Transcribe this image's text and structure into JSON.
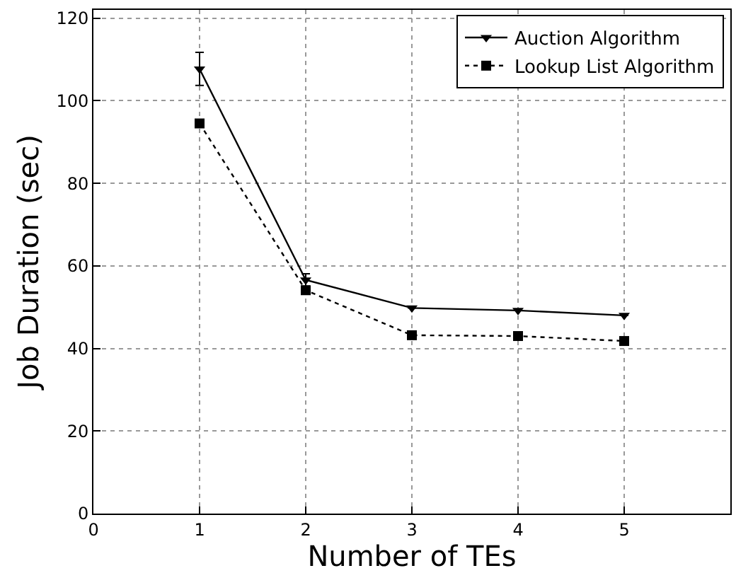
{
  "chart_data": {
    "type": "line",
    "xlabel": "Number of TEs",
    "ylabel": "Job Duration (sec)",
    "x": [
      1,
      2,
      3,
      4,
      5
    ],
    "series": [
      {
        "name": "Auction Algorithm",
        "color": "#000000",
        "values": [
          107.7,
          56.6,
          49.8,
          49.2,
          48.0
        ],
        "errors": [
          4,
          1.5,
          null,
          null,
          null
        ],
        "marker": "triangle",
        "line_style": "solid"
      },
      {
        "name": "Lookup List Algorithm",
        "color": "#000000",
        "values": [
          94.5,
          54.1,
          43.2,
          43.0,
          41.8
        ],
        "marker": "square",
        "line_style": "dotted"
      }
    ],
    "xlim": [
      0,
      6
    ],
    "xticks": [
      0,
      1,
      2,
      3,
      4,
      5
    ],
    "ylim": [
      0,
      122
    ],
    "yticks": [
      0,
      20,
      40,
      60,
      80,
      100,
      120
    ],
    "grid": true,
    "legend": "top right"
  }
}
